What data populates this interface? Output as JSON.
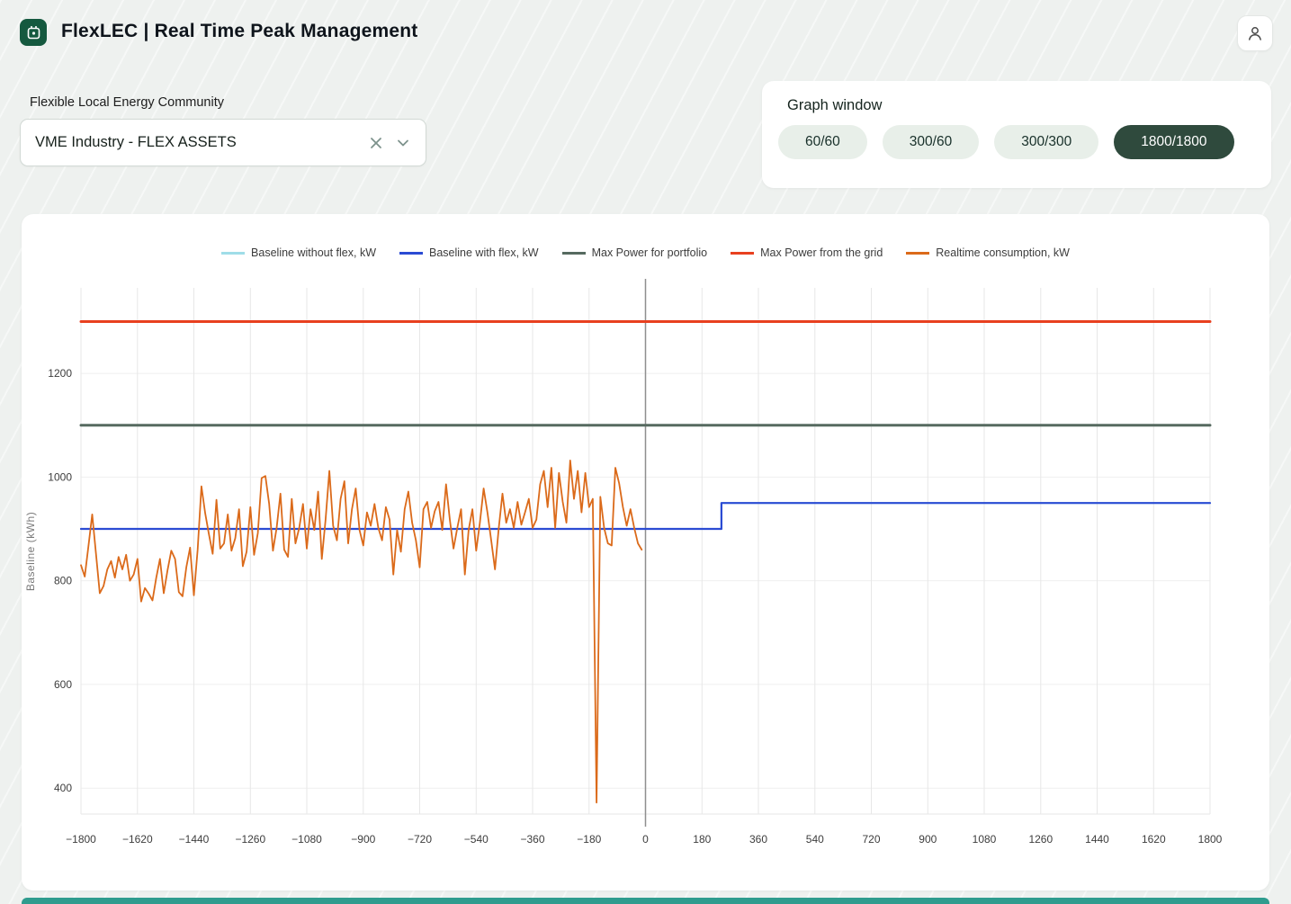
{
  "header": {
    "title": "FlexLEC | Real Time Peak Management"
  },
  "filter": {
    "label": "Flexible Local Energy Community",
    "selected_value": "VME Industry - FLEX ASSETS"
  },
  "graph_window": {
    "title": "Graph window",
    "options": [
      {
        "label": "60/60",
        "selected": false
      },
      {
        "label": "300/60",
        "selected": false
      },
      {
        "label": "300/300",
        "selected": false
      },
      {
        "label": "1800/1800",
        "selected": true
      }
    ]
  },
  "theme": {
    "logo_green": "#15593f",
    "pill_selected_bg": "#2f4a3d",
    "footer_teal": "#2f9c8e",
    "page_bg": "#eef1ef"
  },
  "chart_data": {
    "type": "line",
    "title": "",
    "xlabel": "",
    "ylabel": "Baseline (kWh)",
    "xlim": [
      -1800,
      1800
    ],
    "ylim": [
      350,
      1365
    ],
    "x_ticks": [
      -1800,
      -1620,
      -1440,
      -1260,
      -1080,
      -900,
      -720,
      -540,
      -360,
      -180,
      0,
      180,
      360,
      540,
      720,
      900,
      1080,
      1260,
      1440,
      1620,
      1800
    ],
    "y_ticks": [
      400,
      600,
      800,
      1000,
      1200
    ],
    "grid": true,
    "legend_position": "top",
    "now_line_x": 0,
    "series": [
      {
        "name": "Baseline without flex, kW",
        "color": "#9fdde8",
        "width": 2,
        "points": [
          [
            -1800,
            900
          ],
          [
            242,
            900
          ],
          [
            242,
            950
          ],
          [
            1800,
            950
          ]
        ]
      },
      {
        "name": "Baseline with flex, kW",
        "color": "#2b4bd3",
        "width": 2.2,
        "points": [
          [
            -1800,
            900
          ],
          [
            242,
            900
          ],
          [
            242,
            950
          ],
          [
            1800,
            950
          ]
        ]
      },
      {
        "name": "Max Power for portfolio",
        "color": "#566a60",
        "width": 3,
        "points": [
          [
            -1800,
            1100
          ],
          [
            1800,
            1100
          ]
        ]
      },
      {
        "name": "Max Power from the grid",
        "color": "#e8401f",
        "width": 3,
        "points": [
          [
            -1800,
            1300
          ],
          [
            1800,
            1300
          ]
        ]
      },
      {
        "name": "Realtime consumption, kW",
        "color": "#db6a1a",
        "width": 1.8,
        "points": [
          [
            -1800,
            830
          ],
          [
            -1788,
            808
          ],
          [
            -1776,
            868
          ],
          [
            -1764,
            928
          ],
          [
            -1752,
            852
          ],
          [
            -1740,
            776
          ],
          [
            -1728,
            790
          ],
          [
            -1716,
            822
          ],
          [
            -1704,
            838
          ],
          [
            -1692,
            806
          ],
          [
            -1680,
            846
          ],
          [
            -1668,
            822
          ],
          [
            -1656,
            850
          ],
          [
            -1644,
            800
          ],
          [
            -1632,
            812
          ],
          [
            -1620,
            842
          ],
          [
            -1608,
            760
          ],
          [
            -1596,
            786
          ],
          [
            -1584,
            775
          ],
          [
            -1572,
            762
          ],
          [
            -1560,
            806
          ],
          [
            -1548,
            842
          ],
          [
            -1536,
            776
          ],
          [
            -1524,
            820
          ],
          [
            -1512,
            858
          ],
          [
            -1500,
            842
          ],
          [
            -1488,
            778
          ],
          [
            -1476,
            770
          ],
          [
            -1464,
            826
          ],
          [
            -1452,
            864
          ],
          [
            -1440,
            772
          ],
          [
            -1428,
            860
          ],
          [
            -1416,
            982
          ],
          [
            -1404,
            930
          ],
          [
            -1392,
            890
          ],
          [
            -1380,
            852
          ],
          [
            -1368,
            956
          ],
          [
            -1356,
            862
          ],
          [
            -1344,
            872
          ],
          [
            -1332,
            928
          ],
          [
            -1320,
            858
          ],
          [
            -1308,
            882
          ],
          [
            -1296,
            938
          ],
          [
            -1284,
            828
          ],
          [
            -1272,
            856
          ],
          [
            -1260,
            942
          ],
          [
            -1248,
            850
          ],
          [
            -1236,
            892
          ],
          [
            -1224,
            998
          ],
          [
            -1212,
            1002
          ],
          [
            -1200,
            948
          ],
          [
            -1188,
            858
          ],
          [
            -1176,
            902
          ],
          [
            -1164,
            968
          ],
          [
            -1152,
            860
          ],
          [
            -1140,
            846
          ],
          [
            -1128,
            958
          ],
          [
            -1116,
            872
          ],
          [
            -1104,
            902
          ],
          [
            -1092,
            948
          ],
          [
            -1080,
            862
          ],
          [
            -1068,
            938
          ],
          [
            -1056,
            898
          ],
          [
            -1044,
            972
          ],
          [
            -1032,
            842
          ],
          [
            -1020,
            918
          ],
          [
            -1008,
            1012
          ],
          [
            -996,
            906
          ],
          [
            -984,
            878
          ],
          [
            -972,
            958
          ],
          [
            -960,
            992
          ],
          [
            -948,
            872
          ],
          [
            -936,
            938
          ],
          [
            -924,
            978
          ],
          [
            -912,
            898
          ],
          [
            -900,
            868
          ],
          [
            -888,
            932
          ],
          [
            -876,
            906
          ],
          [
            -864,
            948
          ],
          [
            -852,
            902
          ],
          [
            -840,
            878
          ],
          [
            -828,
            942
          ],
          [
            -816,
            918
          ],
          [
            -804,
            812
          ],
          [
            -792,
            898
          ],
          [
            -780,
            856
          ],
          [
            -768,
            938
          ],
          [
            -756,
            972
          ],
          [
            -744,
            912
          ],
          [
            -732,
            878
          ],
          [
            -720,
            826
          ],
          [
            -708,
            938
          ],
          [
            -696,
            952
          ],
          [
            -684,
            902
          ],
          [
            -672,
            934
          ],
          [
            -660,
            952
          ],
          [
            -648,
            898
          ],
          [
            -636,
            986
          ],
          [
            -624,
            918
          ],
          [
            -612,
            862
          ],
          [
            -600,
            902
          ],
          [
            -588,
            938
          ],
          [
            -576,
            812
          ],
          [
            -564,
            898
          ],
          [
            -552,
            938
          ],
          [
            -540,
            858
          ],
          [
            -528,
            912
          ],
          [
            -516,
            978
          ],
          [
            -504,
            932
          ],
          [
            -492,
            878
          ],
          [
            -480,
            822
          ],
          [
            -468,
            902
          ],
          [
            -456,
            968
          ],
          [
            -444,
            912
          ],
          [
            -432,
            938
          ],
          [
            -420,
            902
          ],
          [
            -408,
            952
          ],
          [
            -396,
            908
          ],
          [
            -384,
            932
          ],
          [
            -372,
            958
          ],
          [
            -360,
            902
          ],
          [
            -348,
            918
          ],
          [
            -336,
            986
          ],
          [
            -324,
            1012
          ],
          [
            -312,
            942
          ],
          [
            -300,
            1018
          ],
          [
            -288,
            902
          ],
          [
            -276,
            1008
          ],
          [
            -264,
            952
          ],
          [
            -252,
            912
          ],
          [
            -240,
            1032
          ],
          [
            -228,
            958
          ],
          [
            -216,
            1012
          ],
          [
            -204,
            932
          ],
          [
            -192,
            1008
          ],
          [
            -180,
            942
          ],
          [
            -168,
            958
          ],
          [
            -156,
            372
          ],
          [
            -144,
            962
          ],
          [
            -132,
            902
          ],
          [
            -120,
            872
          ],
          [
            -108,
            868
          ],
          [
            -96,
            1018
          ],
          [
            -84,
            988
          ],
          [
            -72,
            942
          ],
          [
            -60,
            906
          ],
          [
            -48,
            938
          ],
          [
            -36,
            902
          ],
          [
            -24,
            872
          ],
          [
            -12,
            860
          ]
        ]
      }
    ]
  }
}
